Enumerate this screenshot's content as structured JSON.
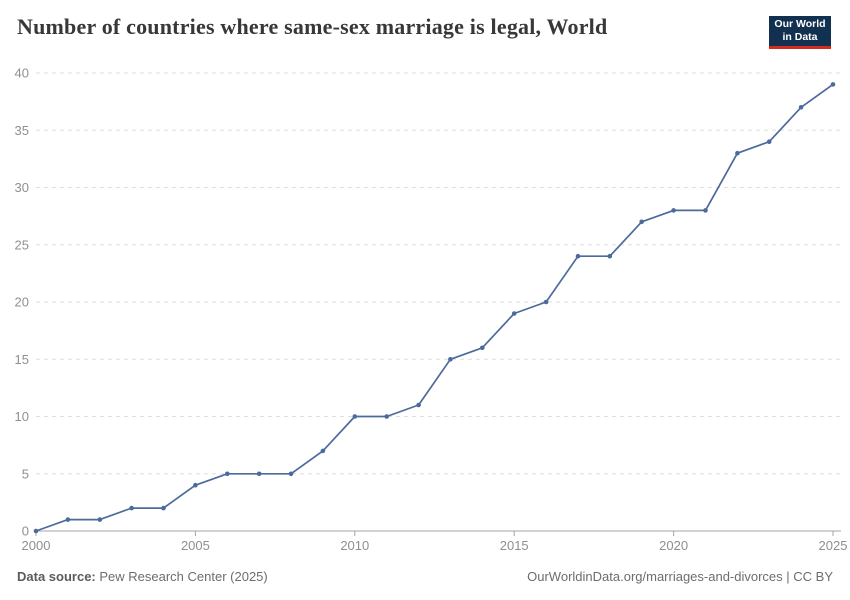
{
  "header": {
    "title": "Number of countries where same-sex marriage is legal, World",
    "logo": {
      "line1": "Our World",
      "line2": "in Data"
    }
  },
  "chart_data": {
    "type": "line",
    "title": "Number of countries where same-sex marriage is legal, World",
    "x": [
      2000,
      2001,
      2002,
      2003,
      2004,
      2005,
      2006,
      2007,
      2008,
      2009,
      2010,
      2011,
      2012,
      2013,
      2014,
      2015,
      2016,
      2017,
      2018,
      2019,
      2020,
      2021,
      2022,
      2023,
      2024,
      2025
    ],
    "series": [
      {
        "name": "World",
        "values": [
          0,
          1,
          1,
          2,
          2,
          4,
          5,
          5,
          5,
          7,
          10,
          10,
          11,
          15,
          16,
          19,
          20,
          24,
          24,
          27,
          28,
          28,
          33,
          34,
          37,
          39
        ]
      }
    ],
    "xlabel": "",
    "ylabel": "",
    "xlim": [
      2000,
      2025
    ],
    "ylim": [
      0,
      40
    ],
    "xticks": [
      2000,
      2005,
      2010,
      2015,
      2020,
      2025
    ],
    "yticks": [
      0,
      5,
      10,
      15,
      20,
      25,
      30,
      35,
      40
    ],
    "grid": "horizontal-dashed",
    "legend": "none",
    "line_color": "#4c6a9c"
  },
  "colors": {
    "accent_line": "#4c6a9c",
    "grid": "#dedede",
    "axis": "#a5a5a5",
    "tick_label": "#8f8f8f",
    "title_text": "#383838",
    "logo_bg": "#12304f",
    "logo_red": "#d42b21"
  },
  "footer": {
    "source_label": "Data source:",
    "source_value": "Pew Research Center (2025)",
    "link": "OurWorldinData.org/marriages-and-divorces | CC BY"
  }
}
